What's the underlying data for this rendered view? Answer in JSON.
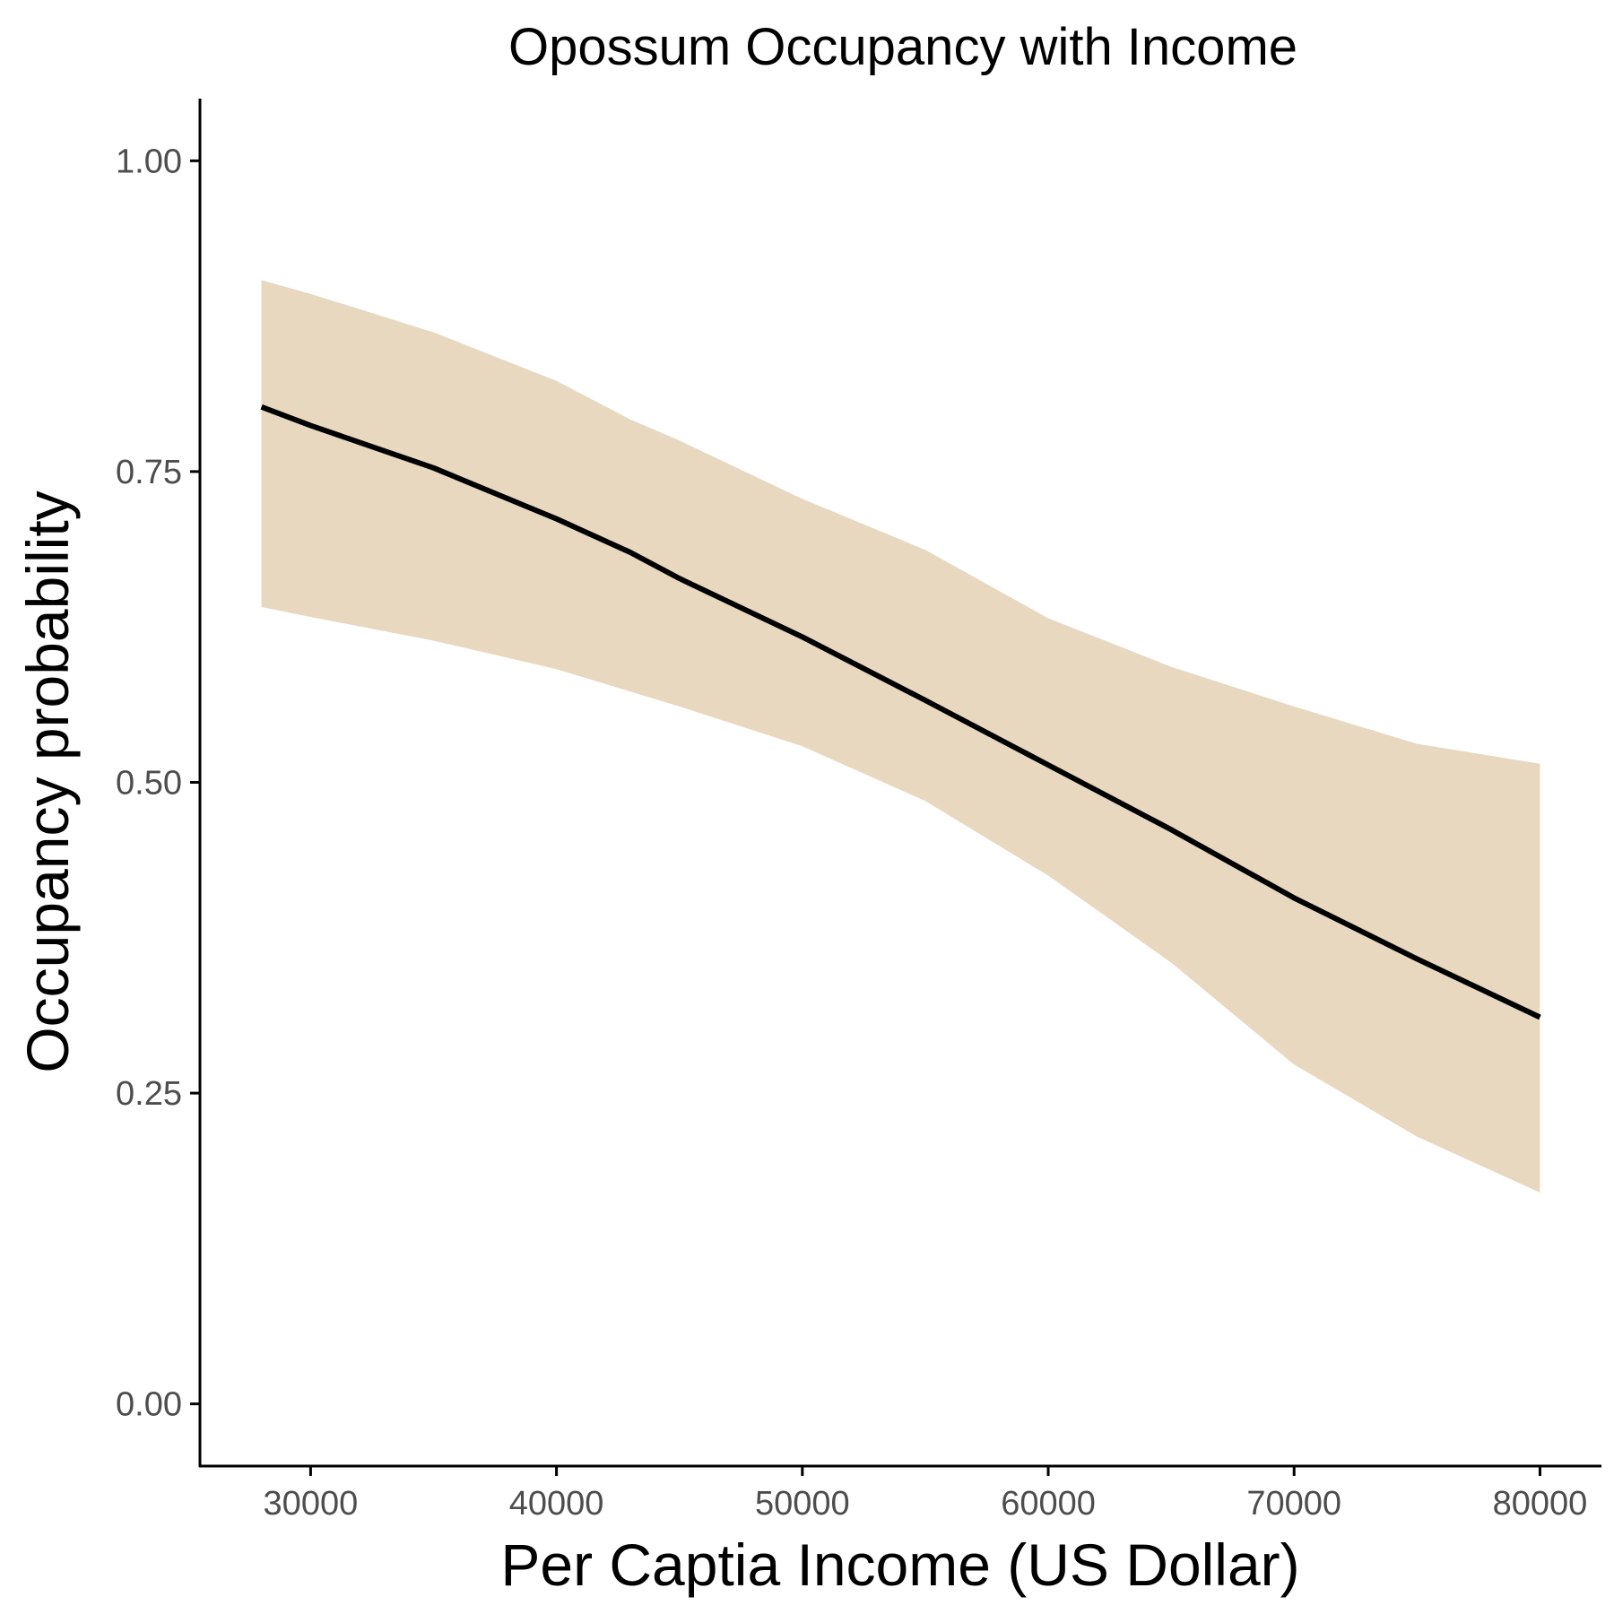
{
  "chart_data": {
    "type": "line",
    "title": "Opossum Occupancy with Income",
    "xlabel": "Per Captia Income (US Dollar)",
    "ylabel": "Occupancy probability",
    "xlim": [
      25500,
      82500
    ],
    "ylim": [
      -0.05,
      1.05
    ],
    "x_ticks": [
      30000,
      40000,
      50000,
      60000,
      70000,
      80000
    ],
    "x_tick_labels": [
      "30000",
      "40000",
      "50000",
      "60000",
      "70000",
      "80000"
    ],
    "y_ticks": [
      0,
      0.25,
      0.5,
      0.75,
      1.0
    ],
    "y_tick_labels": [
      "0.00",
      "0.25",
      "0.50",
      "0.75",
      "1.00"
    ],
    "grid": false,
    "legend": "none",
    "series": [
      {
        "x": [
          28000,
          30000,
          35000,
          40000,
          43000,
          45000,
          50000,
          55000,
          60000,
          65000,
          70000,
          75000,
          80000
        ],
        "y": [
          0.802,
          0.787,
          0.753,
          0.712,
          0.685,
          0.664,
          0.617,
          0.566,
          0.514,
          0.462,
          0.407,
          0.358,
          0.311
        ],
        "lower": [
          0.641,
          0.633,
          0.614,
          0.591,
          0.573,
          0.561,
          0.529,
          0.485,
          0.425,
          0.355,
          0.273,
          0.215,
          0.17
        ],
        "upper": [
          0.904,
          0.893,
          0.862,
          0.823,
          0.792,
          0.775,
          0.728,
          0.687,
          0.632,
          0.593,
          0.561,
          0.531,
          0.515
        ]
      }
    ],
    "colors": {
      "line": "#000000",
      "ribbon": "#e8d8c0",
      "axis": "#000000",
      "tick_label": "#4d4d4d"
    }
  }
}
